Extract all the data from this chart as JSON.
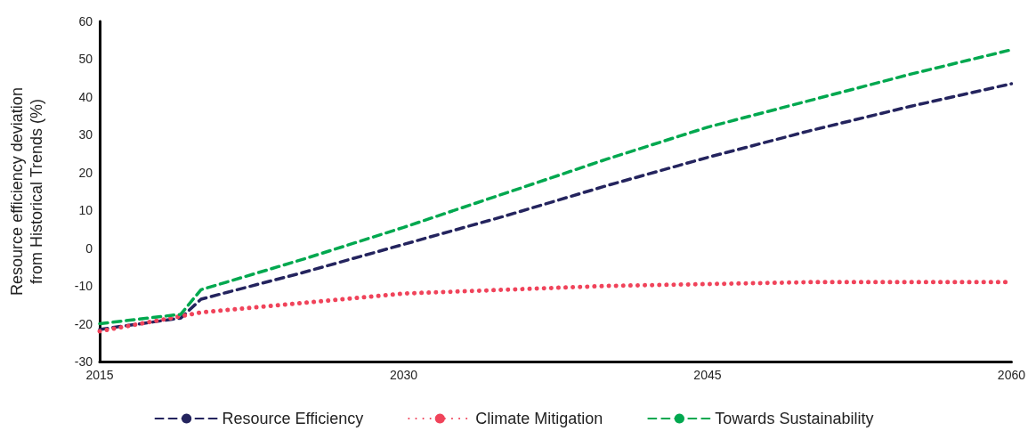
{
  "chart_data": {
    "type": "line",
    "ylabel": "Resource efficiency deviation\nfrom Historical Trends (%)",
    "x": [
      2015,
      2019,
      2020,
      2025,
      2030,
      2035,
      2040,
      2045,
      2050,
      2055,
      2060
    ],
    "series": [
      {
        "name": "Resource Efficiency",
        "color": "#24245e",
        "line_style": "dashed",
        "values": [
          -21.5,
          -18.5,
          -13.5,
          -6.5,
          1,
          8.5,
          16.5,
          24,
          31,
          37.5,
          43.5
        ]
      },
      {
        "name": "Climate Mitigation",
        "color": "#f0435a",
        "line_style": "dotted",
        "values": [
          -22,
          -18,
          -17,
          -14.5,
          -12,
          -11,
          -10,
          -9.5,
          -9,
          -9,
          -9
        ]
      },
      {
        "name": "Towards Sustainability",
        "color": "#00a84f",
        "line_style": "dashed",
        "values": [
          -20,
          -17.5,
          -11,
          -3,
          5.5,
          14.5,
          23.5,
          32,
          39,
          46,
          52.5
        ]
      }
    ],
    "xlim": [
      2015,
      2060
    ],
    "xticks": [
      2015,
      2030,
      2045,
      2060
    ],
    "ylim": [
      -30,
      60
    ],
    "yticks": [
      -30,
      -20,
      -10,
      0,
      10,
      20,
      30,
      40,
      50,
      60
    ],
    "grid": false,
    "legend": "bottom",
    "marker": "none"
  }
}
